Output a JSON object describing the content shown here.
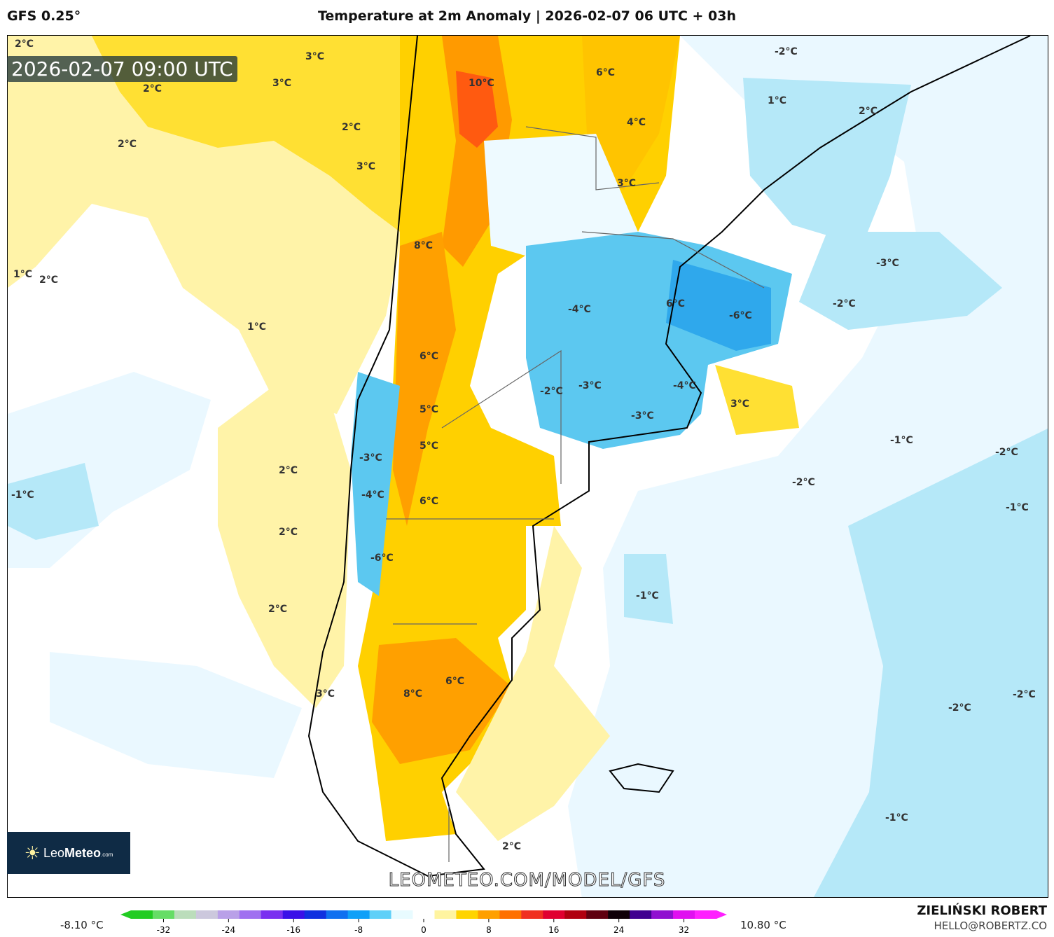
{
  "header": {
    "model": "GFS 0.25°",
    "title": "Temperature at 2m Anomaly | 2026-02-07 06 UTC + 03h"
  },
  "map": {
    "valid_time": "2026-02-07 09:00 UTC",
    "watermark": "LEOMETEO.COM/MODEL/GFS",
    "logo": {
      "light": "Leo",
      "bold": "Meteo",
      "suffix": ".com"
    },
    "contour_labels": [
      "2°C",
      "3°C",
      "3°C",
      "2°C",
      "2°C",
      "2°C",
      "3°C",
      "1°C",
      "2°C",
      "1°C",
      "10°C",
      "6°C",
      "4°C",
      "3°C",
      "-2°C",
      "1°C",
      "2°C",
      "8°C",
      "-3°C",
      "-4°C",
      "6°C",
      "-6°C",
      "-2°C",
      "6°C",
      "-2°C",
      "-3°C",
      "-4°C",
      "3°C",
      "-3°C",
      "5°C",
      "5°C",
      "-3°C",
      "-4°C",
      "6°C",
      "-1°C",
      "2°C",
      "2°C",
      "2°C",
      "-1°C",
      "-2°C",
      "-2°C",
      "-1°C",
      "-6°C",
      "-1°C",
      "6°C",
      "8°C",
      "3°C",
      "-2°C",
      "-2°C",
      "-1°C",
      "2°C"
    ]
  },
  "colorbar": {
    "min_label": "-8.10 °C",
    "max_label": "10.80 °C",
    "ticks": [
      "-32",
      "-24",
      "-16",
      "-8",
      "0",
      "8",
      "16",
      "24",
      "32"
    ],
    "colors": [
      "#22cc22",
      "#66dd66",
      "#bbddbb",
      "#ccc8dd",
      "#b9a0e8",
      "#a070f0",
      "#7a30f0",
      "#3a10e8",
      "#1030e0",
      "#1070f0",
      "#10a0f8",
      "#60d0f8",
      "#e8fbff",
      "#fff",
      "#fff4a0",
      "#ffd400",
      "#ffa000",
      "#ff7000",
      "#f03020",
      "#e00030",
      "#b00010",
      "#600010",
      "#100008",
      "#400090",
      "#9010d0",
      "#e010f0",
      "#ff20ff"
    ],
    "range": [
      -36,
      36
    ]
  },
  "credits": {
    "author": "ZIELIŃSKI ROBERT",
    "email": "HELLO@ROBERTZ.CO"
  }
}
